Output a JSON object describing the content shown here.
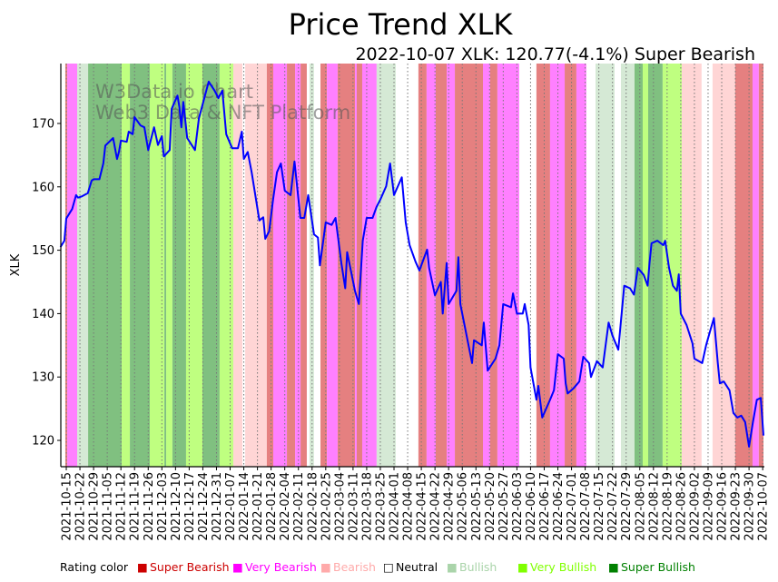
{
  "chart_data": {
    "type": "line",
    "title": "Price Trend XLK",
    "subtitle": "2022-10-07 XLK: 120.77(-4.1%) Super Bearish",
    "xlabel": "",
    "ylabel": "XLK",
    "x_origin_date": "2021-10-15",
    "x_unit": "days since origin",
    "xlim": [
      -2.8,
      357.4
    ],
    "ylim": [
      115.85,
      179.45
    ],
    "yticks": [
      120,
      130,
      140,
      150,
      160,
      170
    ],
    "xtick_labels": [
      "2021-10-15",
      "2021-10-22",
      "2021-10-29",
      "2021-11-05",
      "2021-11-12",
      "2021-11-19",
      "2021-11-26",
      "2021-12-03",
      "2021-12-10",
      "2021-12-17",
      "2021-12-24",
      "2021-12-31",
      "2022-01-07",
      "2022-01-14",
      "2022-01-21",
      "2022-01-28",
      "2022-02-04",
      "2022-02-11",
      "2022-02-18",
      "2022-02-25",
      "2022-03-04",
      "2022-03-11",
      "2022-03-18",
      "2022-03-25",
      "2022-04-01",
      "2022-04-08",
      "2022-04-15",
      "2022-04-22",
      "2022-04-29",
      "2022-05-06",
      "2022-05-13",
      "2022-05-20",
      "2022-05-27",
      "2022-06-03",
      "2022-06-10",
      "2022-06-17",
      "2022-06-24",
      "2022-07-01",
      "2022-07-08",
      "2022-07-15",
      "2022-07-22",
      "2022-07-29",
      "2022-08-05",
      "2022-08-12",
      "2022-08-19",
      "2022-08-26",
      "2022-09-02",
      "2022-09-09",
      "2022-09-16",
      "2022-09-23",
      "2022-09-30",
      "2022-10-07"
    ],
    "grid": "vertical dotted at x ticks",
    "series": [
      {
        "name": "XLK",
        "color": "#0000ff",
        "points": [
          [
            -3,
            150.5
          ],
          [
            -1,
            151.5
          ],
          [
            0,
            155
          ],
          [
            3,
            156.5
          ],
          [
            5,
            158.7
          ],
          [
            6,
            158.3
          ],
          [
            8,
            158.5
          ],
          [
            11,
            159
          ],
          [
            13,
            161
          ],
          [
            14,
            161.2
          ],
          [
            17,
            161.2
          ],
          [
            19,
            163.7
          ],
          [
            20,
            166.5
          ],
          [
            24,
            167.7
          ],
          [
            26,
            164.4
          ],
          [
            27,
            165.5
          ],
          [
            28,
            167.3
          ],
          [
            31,
            167.1
          ],
          [
            32,
            168.7
          ],
          [
            34,
            168.3
          ],
          [
            35,
            171
          ],
          [
            38,
            169.7
          ],
          [
            40,
            169.4
          ],
          [
            42,
            165.8
          ],
          [
            45,
            169.4
          ],
          [
            47,
            166.6
          ],
          [
            49,
            168
          ],
          [
            50,
            164.8
          ],
          [
            53,
            165.8
          ],
          [
            54,
            172.3
          ],
          [
            55,
            173
          ],
          [
            57,
            174.4
          ],
          [
            58,
            172.6
          ],
          [
            59,
            169.4
          ],
          [
            60,
            173.4
          ],
          [
            62,
            167.7
          ],
          [
            66,
            165.8
          ],
          [
            68,
            170.8
          ],
          [
            73,
            176.6
          ],
          [
            76,
            175.2
          ],
          [
            78,
            174
          ],
          [
            80,
            175.2
          ],
          [
            82,
            168.3
          ],
          [
            85,
            166.1
          ],
          [
            88,
            166.1
          ],
          [
            90,
            168.7
          ],
          [
            91,
            164.4
          ],
          [
            93,
            165.5
          ],
          [
            95,
            162.3
          ],
          [
            99,
            154.7
          ],
          [
            101,
            155.2
          ],
          [
            102,
            151.8
          ],
          [
            104,
            153
          ],
          [
            106,
            158
          ],
          [
            108,
            162.3
          ],
          [
            110,
            163.7
          ],
          [
            112,
            159.4
          ],
          [
            115,
            158.7
          ],
          [
            117,
            164
          ],
          [
            120,
            155.1
          ],
          [
            122,
            155.1
          ],
          [
            124,
            158.7
          ],
          [
            127,
            152.5
          ],
          [
            129,
            152
          ],
          [
            130,
            147.6
          ],
          [
            133,
            154.4
          ],
          [
            136,
            154
          ],
          [
            138,
            155.1
          ],
          [
            141,
            148
          ],
          [
            143,
            144
          ],
          [
            144,
            149.7
          ],
          [
            148,
            143.6
          ],
          [
            150,
            141.5
          ],
          [
            152,
            151.5
          ],
          [
            154,
            155.1
          ],
          [
            157,
            155.1
          ],
          [
            159,
            156.8
          ],
          [
            161,
            158
          ],
          [
            164,
            160.1
          ],
          [
            166,
            163.7
          ],
          [
            168,
            158.7
          ],
          [
            172,
            161.5
          ],
          [
            174,
            154.4
          ],
          [
            176,
            150.8
          ],
          [
            179,
            148.2
          ],
          [
            181,
            146.8
          ],
          [
            185,
            150.1
          ],
          [
            186,
            147.2
          ],
          [
            189,
            142.9
          ],
          [
            192,
            145
          ],
          [
            193,
            140
          ],
          [
            195,
            148
          ],
          [
            196,
            141.5
          ],
          [
            200,
            143.6
          ],
          [
            201,
            148.9
          ],
          [
            202,
            141.5
          ],
          [
            206,
            135.3
          ],
          [
            208,
            132.2
          ],
          [
            209,
            135.8
          ],
          [
            213,
            135
          ],
          [
            214,
            138.6
          ],
          [
            216,
            131
          ],
          [
            220,
            132.9
          ],
          [
            222,
            135
          ],
          [
            224,
            141.5
          ],
          [
            228,
            141
          ],
          [
            229,
            143.2
          ],
          [
            231,
            140
          ],
          [
            234,
            140
          ],
          [
            235,
            141.5
          ],
          [
            237,
            138.2
          ],
          [
            238,
            131.5
          ],
          [
            241,
            126.4
          ],
          [
            242,
            128.6
          ],
          [
            244,
            123.6
          ],
          [
            248,
            126.4
          ],
          [
            250,
            127.9
          ],
          [
            252,
            133.6
          ],
          [
            255,
            132.9
          ],
          [
            256,
            129
          ],
          [
            257,
            127.4
          ],
          [
            260,
            128.2
          ],
          [
            263,
            129.3
          ],
          [
            265,
            133.2
          ],
          [
            268,
            132.2
          ],
          [
            269,
            130
          ],
          [
            272,
            132.5
          ],
          [
            275,
            131.5
          ],
          [
            278,
            138.6
          ],
          [
            280,
            136.5
          ],
          [
            283,
            134.3
          ],
          [
            286,
            144.4
          ],
          [
            289,
            144
          ],
          [
            291,
            143
          ],
          [
            293,
            147.2
          ],
          [
            296,
            146.1
          ],
          [
            298,
            144.4
          ],
          [
            299,
            148
          ],
          [
            300,
            151.1
          ],
          [
            303,
            151.5
          ],
          [
            306,
            150.8
          ],
          [
            307,
            151.5
          ],
          [
            309,
            147.2
          ],
          [
            311,
            144.4
          ],
          [
            313,
            143.6
          ],
          [
            314,
            146.2
          ],
          [
            315,
            140
          ],
          [
            318,
            138.2
          ],
          [
            321,
            135.3
          ],
          [
            322,
            132.9
          ],
          [
            326,
            132.2
          ],
          [
            328,
            135
          ],
          [
            330,
            137.2
          ],
          [
            332,
            139.3
          ],
          [
            334,
            132.2
          ],
          [
            335,
            129
          ],
          [
            337,
            129.3
          ],
          [
            340,
            127.9
          ],
          [
            342,
            124.3
          ],
          [
            344,
            123.6
          ],
          [
            346,
            123.9
          ],
          [
            348,
            122.9
          ],
          [
            350,
            119
          ],
          [
            352,
            122.9
          ],
          [
            354,
            126.4
          ],
          [
            356,
            126.7
          ],
          [
            357.4,
            120.77
          ]
        ]
      }
    ],
    "rating_bands": [
      [
        -2.8,
        -0.5,
        "N"
      ],
      [
        -0.5,
        0.5,
        "SB"
      ],
      [
        0.5,
        5.6,
        "VB"
      ],
      [
        5.6,
        11.2,
        "U"
      ],
      [
        11.2,
        28.4,
        "SU"
      ],
      [
        28.4,
        32.6,
        "VU"
      ],
      [
        32.6,
        42.8,
        "SU"
      ],
      [
        42.8,
        50.3,
        "VU"
      ],
      [
        50.3,
        51.2,
        "SU"
      ],
      [
        51.2,
        54.4,
        "VU"
      ],
      [
        54.4,
        61.4,
        "SU"
      ],
      [
        61.4,
        69.8,
        "VU"
      ],
      [
        69.8,
        78.6,
        "SU"
      ],
      [
        78.6,
        85.6,
        "VU"
      ],
      [
        85.6,
        90.3,
        "B"
      ],
      [
        90.3,
        91.7,
        "N"
      ],
      [
        91.7,
        102.8,
        "B"
      ],
      [
        102.8,
        106.1,
        "SB"
      ],
      [
        106.1,
        113.1,
        "VB"
      ],
      [
        113.1,
        117.3,
        "SB"
      ],
      [
        117.3,
        120.1,
        "VB"
      ],
      [
        120.1,
        123.3,
        "SB"
      ],
      [
        123.3,
        124.7,
        "N"
      ],
      [
        124.7,
        127.0,
        "U"
      ],
      [
        127.0,
        130.3,
        "N"
      ],
      [
        130.3,
        133.6,
        "SB"
      ],
      [
        133.6,
        139.1,
        "VB"
      ],
      [
        139.1,
        148.0,
        "SB"
      ],
      [
        148.0,
        148.9,
        "VB"
      ],
      [
        148.9,
        151.7,
        "SB"
      ],
      [
        151.7,
        159.1,
        "VB"
      ],
      [
        159.1,
        168.9,
        "U"
      ],
      [
        168.9,
        180.5,
        "N"
      ],
      [
        180.5,
        184.7,
        "SB"
      ],
      [
        184.7,
        189.4,
        "VB"
      ],
      [
        189.4,
        195.0,
        "SB"
      ],
      [
        195.0,
        199.2,
        "VB"
      ],
      [
        199.2,
        213.6,
        "SB"
      ],
      [
        213.6,
        217.3,
        "VB"
      ],
      [
        217.3,
        221.0,
        "SB"
      ],
      [
        221.0,
        232.2,
        "VB"
      ],
      [
        232.2,
        241.0,
        "N"
      ],
      [
        241.0,
        248.0,
        "SB"
      ],
      [
        248.0,
        255.5,
        "VB"
      ],
      [
        255.5,
        261.5,
        "SB"
      ],
      [
        261.5,
        266.6,
        "VB"
      ],
      [
        266.6,
        271.3,
        "N"
      ],
      [
        271.3,
        281.1,
        "U"
      ],
      [
        281.1,
        284.3,
        "N"
      ],
      [
        284.3,
        291.3,
        "U"
      ],
      [
        291.3,
        295.5,
        "SU"
      ],
      [
        295.5,
        298.3,
        "VU"
      ],
      [
        298.3,
        305.7,
        "SU"
      ],
      [
        305.7,
        315.5,
        "VU"
      ],
      [
        315.5,
        325.7,
        "B"
      ],
      [
        325.7,
        331.3,
        "N"
      ],
      [
        331.3,
        342.9,
        "B"
      ],
      [
        342.9,
        351.8,
        "SB"
      ],
      [
        351.8,
        355.0,
        "VB"
      ],
      [
        355.0,
        357.4,
        "SB"
      ]
    ],
    "band_colors": {
      "SB": "#e58080",
      "VB": "#ff80ff",
      "B": "#ffd5d5",
      "N": "#ffffff",
      "U": "#d5e9d5",
      "VU": "#bfff80",
      "SU": "#80c080"
    },
    "legend": {
      "placement": "bottom",
      "title": "Rating color",
      "items": [
        {
          "key": "SB",
          "label": "Super Bearish",
          "color": "#cc0000",
          "glyph": "■"
        },
        {
          "key": "VB",
          "label": "Very Bearish",
          "color": "#ff00ff",
          "glyph": "■"
        },
        {
          "key": "B",
          "label": "Bearish",
          "color": "#ffaaaa",
          "glyph": "■"
        },
        {
          "key": "N",
          "label": "Neutral",
          "color": "#000000",
          "glyph": "□"
        },
        {
          "key": "U",
          "label": "Bullish",
          "color": "#aad4aa",
          "glyph": "■"
        },
        {
          "key": "VU",
          "label": "Very Bullish",
          "color": "#80ff00",
          "glyph": "■"
        },
        {
          "key": "SU",
          "label": "Super Bullish",
          "color": "#008000",
          "glyph": "■"
        }
      ]
    },
    "watermark": [
      "W3Data.io Chart",
      "Web3 Data & NFT Platform"
    ]
  }
}
